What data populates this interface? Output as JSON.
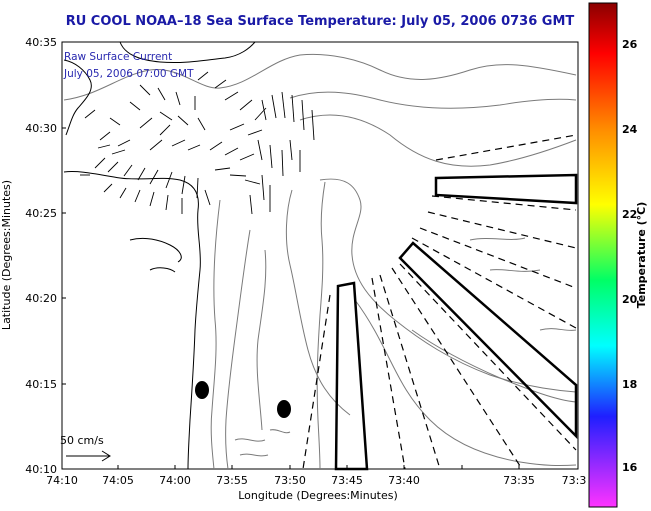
{
  "title": "RU COOL  NOAA–18  Sea Surface Temperature:  July 05, 2006 0736 GMT",
  "annotation": {
    "line1": "Raw Surface Current",
    "line2": "July 05, 2006 07:00 GMT"
  },
  "scale_label": "50 cm/s",
  "x_axis": {
    "label": "Longitude (Degrees:Minutes)",
    "ticks": [
      "74:10",
      "74:05",
      "74:00",
      "73:55",
      "73:50",
      "73:45",
      "73:40",
      "73:35",
      "73:3"
    ]
  },
  "y_axis": {
    "label": "Latitude (Degrees:Minutes)",
    "ticks": [
      "40:35",
      "40:30",
      "40:25",
      "40:20",
      "40:15",
      "40:10"
    ]
  },
  "colorbar": {
    "label": "Temperature (°C)",
    "ticks": [
      "26",
      "24",
      "22",
      "20",
      "18",
      "16"
    ],
    "colors": [
      "#8b0000",
      "#ff0000",
      "#ff8c00",
      "#ffff00",
      "#00ff66",
      "#00ffff",
      "#1f1fff",
      "#ff33ff"
    ]
  },
  "colors": {
    "title": "#1a1aa6",
    "annotation": "#2a2ab0",
    "lines": "#000000",
    "contours": "#7a7a7a"
  }
}
